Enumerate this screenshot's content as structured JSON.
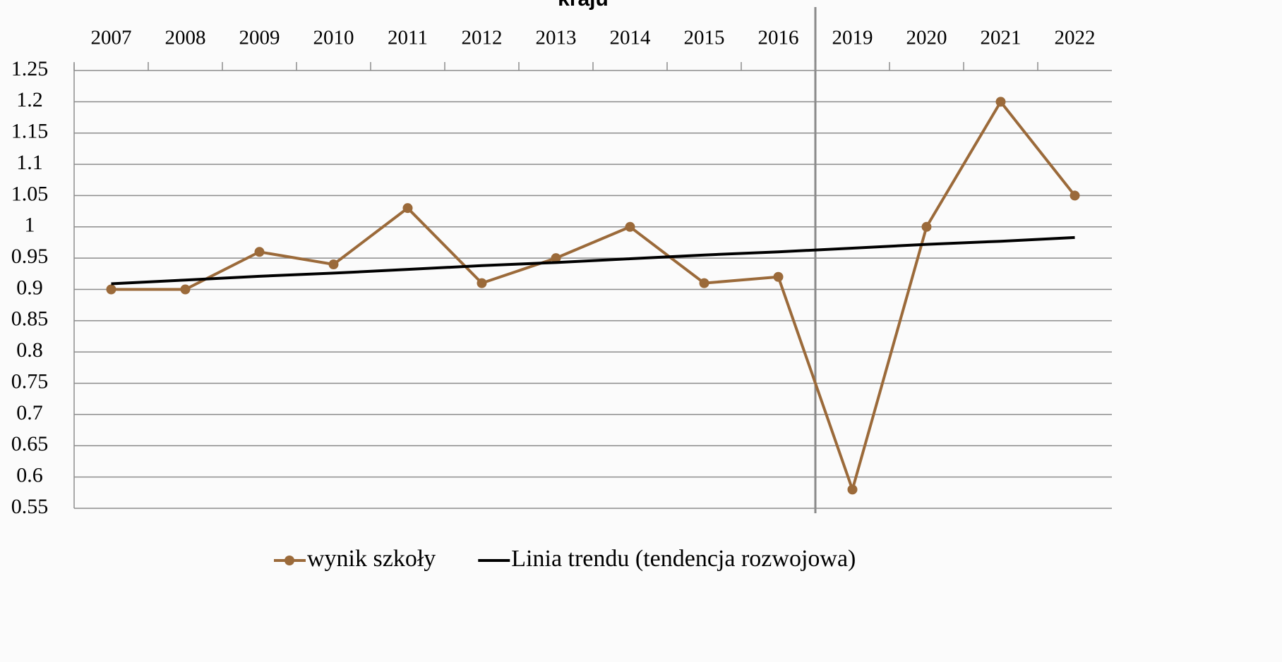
{
  "chart_data": {
    "type": "line",
    "title": "kraju",
    "categories": [
      "2007",
      "2008",
      "2009",
      "2010",
      "2011",
      "2012",
      "2013",
      "2014",
      "2015",
      "2016",
      "2019",
      "2020",
      "2021",
      "2022"
    ],
    "series": [
      {
        "name": "wynik szkoły",
        "color": "#9b6a3a",
        "values": [
          0.9,
          0.9,
          0.96,
          0.94,
          1.03,
          0.91,
          0.95,
          1.0,
          0.91,
          0.92,
          0.58,
          1.0,
          1.2,
          1.05
        ]
      },
      {
        "name": "Linia trendu (tendencja rozwojowa)",
        "color": "#000000",
        "values": [
          0.909,
          0.915,
          0.921,
          0.926,
          0.932,
          0.938,
          0.943,
          0.949,
          0.955,
          0.96,
          0.966,
          0.972,
          0.977,
          0.983
        ]
      }
    ],
    "ylim": [
      0.55,
      1.25
    ],
    "yticks": [
      0.55,
      0.6,
      0.65,
      0.7,
      0.75,
      0.8,
      0.85,
      0.9,
      0.95,
      1,
      1.05,
      1.1,
      1.15,
      1.2,
      1.25
    ],
    "grid": true,
    "legend": "bottom"
  }
}
